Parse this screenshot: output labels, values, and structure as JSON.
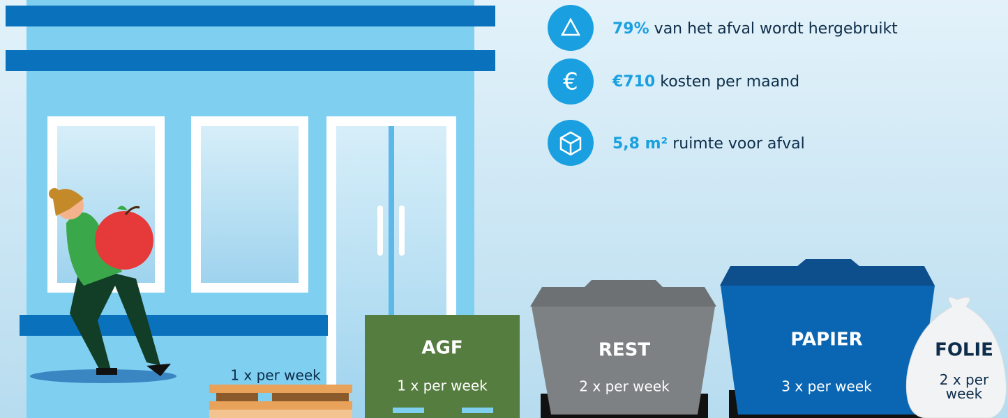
{
  "stats": [
    {
      "highlight": "79%",
      "text": "van het afval wordt hergebruikt"
    },
    {
      "highlight": "€710",
      "text": "kosten per maand"
    },
    {
      "highlight": "5,8 m²",
      "text": "ruimte voor afval"
    }
  ],
  "pallet": {
    "frequency": "1 x per week"
  },
  "containers": [
    {
      "label": "AGF",
      "frequency": "1 x per week"
    },
    {
      "label": "REST",
      "frequency": "2 x per week"
    },
    {
      "label": "PAPIER",
      "frequency": "3 x per week"
    },
    {
      "label": "FOLIE",
      "frequency": "2 x per week"
    }
  ]
}
